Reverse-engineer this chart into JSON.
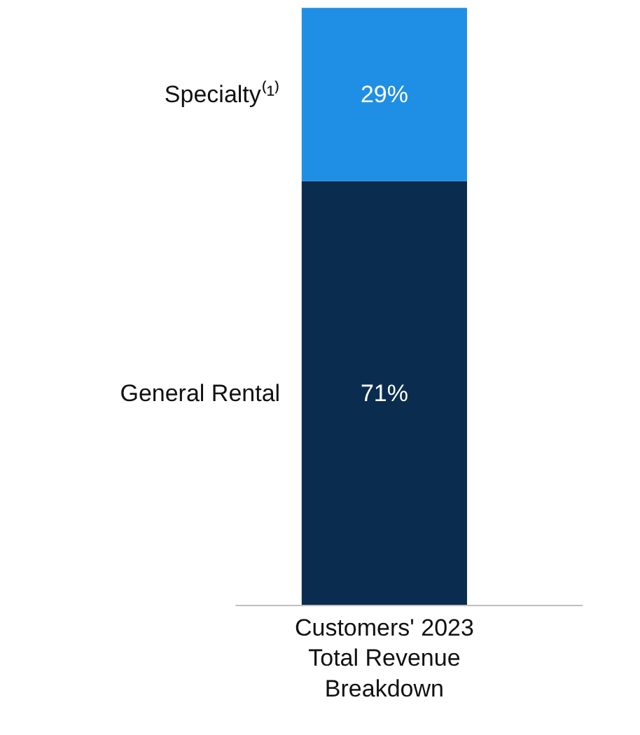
{
  "chart_data": {
    "type": "bar",
    "stacked": true,
    "categories": [
      "Customers' 2023 Total Revenue Breakdown"
    ],
    "series": [
      {
        "name": "General Rental",
        "color": "#0a2d4f",
        "values": [
          71
        ],
        "value_labels": [
          "71%"
        ]
      },
      {
        "name": "Specialty⁽¹⁾",
        "color": "#1f8fe5",
        "values": [
          29
        ],
        "value_labels": [
          "29%"
        ]
      }
    ]
  }
}
